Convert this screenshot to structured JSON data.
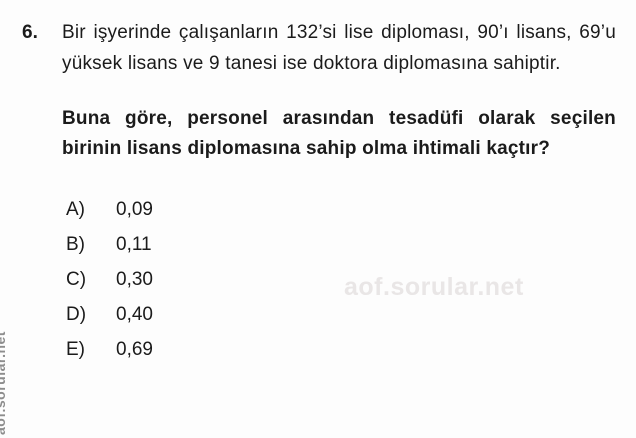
{
  "question": {
    "number": "6.",
    "body": "Bir işyerinde çalışanların 132’si lise diploması, 90’ı lisans, 69’u yüksek lisans ve 9 tanesi ise doktora diplomasına sahiptir.",
    "prompt": "Buna göre, personel arasından tesadüfi olarak seçilen birinin lisans diplomasına sahip olma ihtimali kaçtır?",
    "options": [
      {
        "label": "A)",
        "value": "0,09"
      },
      {
        "label": "B)",
        "value": "0,11"
      },
      {
        "label": "C)",
        "value": "0,30"
      },
      {
        "label": "D)",
        "value": "0,40"
      },
      {
        "label": "E)",
        "value": "0,69"
      }
    ]
  },
  "watermarks": {
    "center": "aof.sorular.net",
    "side": "aof.sorular.net"
  },
  "colors": {
    "text": "#1b1b1b",
    "watermark_center": "#e9e6e6",
    "watermark_side": "#8d8d8d",
    "background": "#fdfdfd"
  }
}
